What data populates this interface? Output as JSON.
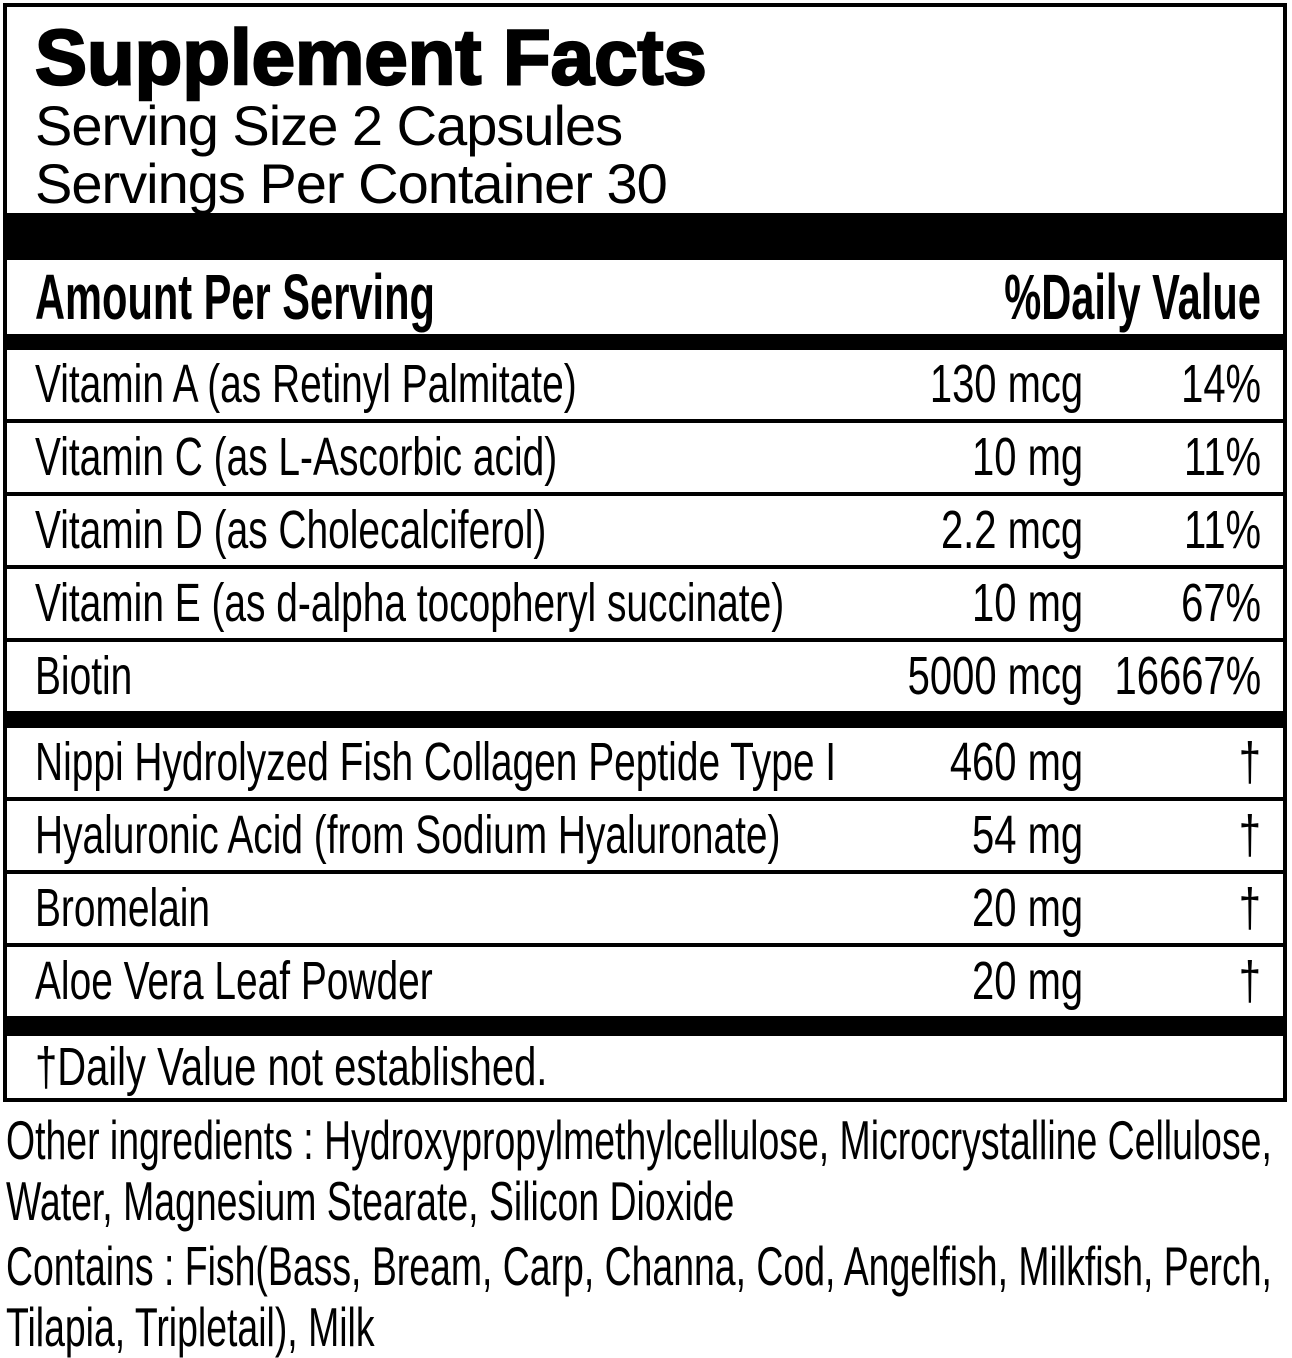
{
  "panel": {
    "title": "Supplement Facts",
    "serving_size": "Serving Size 2 Capsules",
    "servings_per_container": "Servings Per Container 30",
    "columns": {
      "left": "Amount Per Serving",
      "right": "%Daily Value"
    },
    "rows_primary": [
      {
        "name": "Vitamin A (as Retinyl Palmitate)",
        "amount": "130 mcg",
        "daily_value": "14%"
      },
      {
        "name": "Vitamin C (as L-Ascorbic acid)",
        "amount": "10 mg",
        "daily_value": "11%"
      },
      {
        "name": "Vitamin D (as Cholecalciferol)",
        "amount": "2.2 mcg",
        "daily_value": "11%"
      },
      {
        "name": "Vitamin E (as d-alpha tocopheryl succinate)",
        "amount": "10 mg",
        "daily_value": "67%"
      },
      {
        "name": "Biotin",
        "amount": "5000 mcg",
        "daily_value": "16667%"
      }
    ],
    "rows_secondary": [
      {
        "name": "Nippi Hydrolyzed Fish Collagen Peptide Type I",
        "amount": "460 mg",
        "daily_value": "†"
      },
      {
        "name": "Hyaluronic Acid (from Sodium Hyaluronate)",
        "amount": "54 mg",
        "daily_value": "†"
      },
      {
        "name": "Bromelain",
        "amount": "20 mg",
        "daily_value": "†"
      },
      {
        "name": "Aloe Vera Leaf Powder",
        "amount": "20 mg",
        "daily_value": "†"
      }
    ],
    "footnote": "†Daily Value not established."
  },
  "below_panel": {
    "other_ingredients": "Other ingredients : Hydroxypropylmethylcellulose, Microcrystalline Cellulose, Water, Magnesium Stearate, Silicon Dioxide",
    "contains": "Contains : Fish(Bass, Bream, Carp, Channa, Cod, Angelfish, Milkfish, Perch, Tilapia, Tripletail), Milk"
  },
  "colors": {
    "ink": "#000000",
    "paper": "#ffffff"
  }
}
